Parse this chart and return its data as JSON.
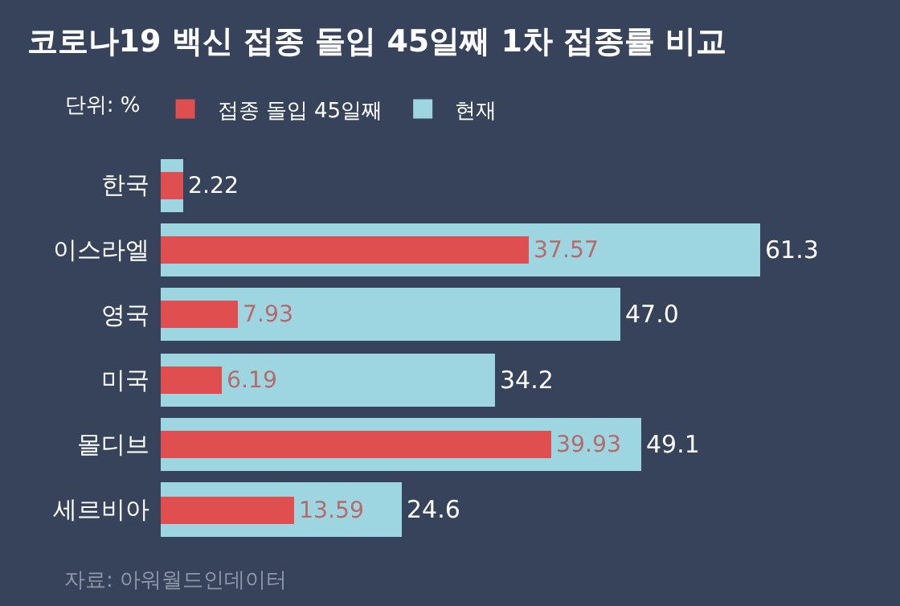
{
  "chart_data": {
    "type": "bar",
    "orientation": "horizontal",
    "title": "코로나19 백신 접종 돌입 45일째 1차 접종률 비교",
    "legend_title": "단위: %",
    "legend": "top left",
    "categories": [
      "한국",
      "이스라엘",
      "영국",
      "미국",
      "몰디브",
      "세르비아"
    ],
    "series": [
      {
        "name": "현재",
        "color": "#9dd6e0",
        "values": [
          2.22,
          61.3,
          47.0,
          34.2,
          49.1,
          24.6
        ],
        "value_labels": [
          null,
          "61.3",
          "47.0",
          "34.2",
          "49.1",
          "24.6"
        ]
      },
      {
        "name": "접종 돌입 45일째",
        "color": "#e04f4f",
        "values": [
          2.22,
          37.57,
          7.93,
          6.19,
          39.93,
          13.59
        ],
        "value_labels": [
          "2.22",
          "37.57",
          "7.93",
          "6.19",
          "39.93",
          "13.59"
        ]
      }
    ],
    "annotations": [
      "자료: 아워월드인데이터"
    ]
  }
}
